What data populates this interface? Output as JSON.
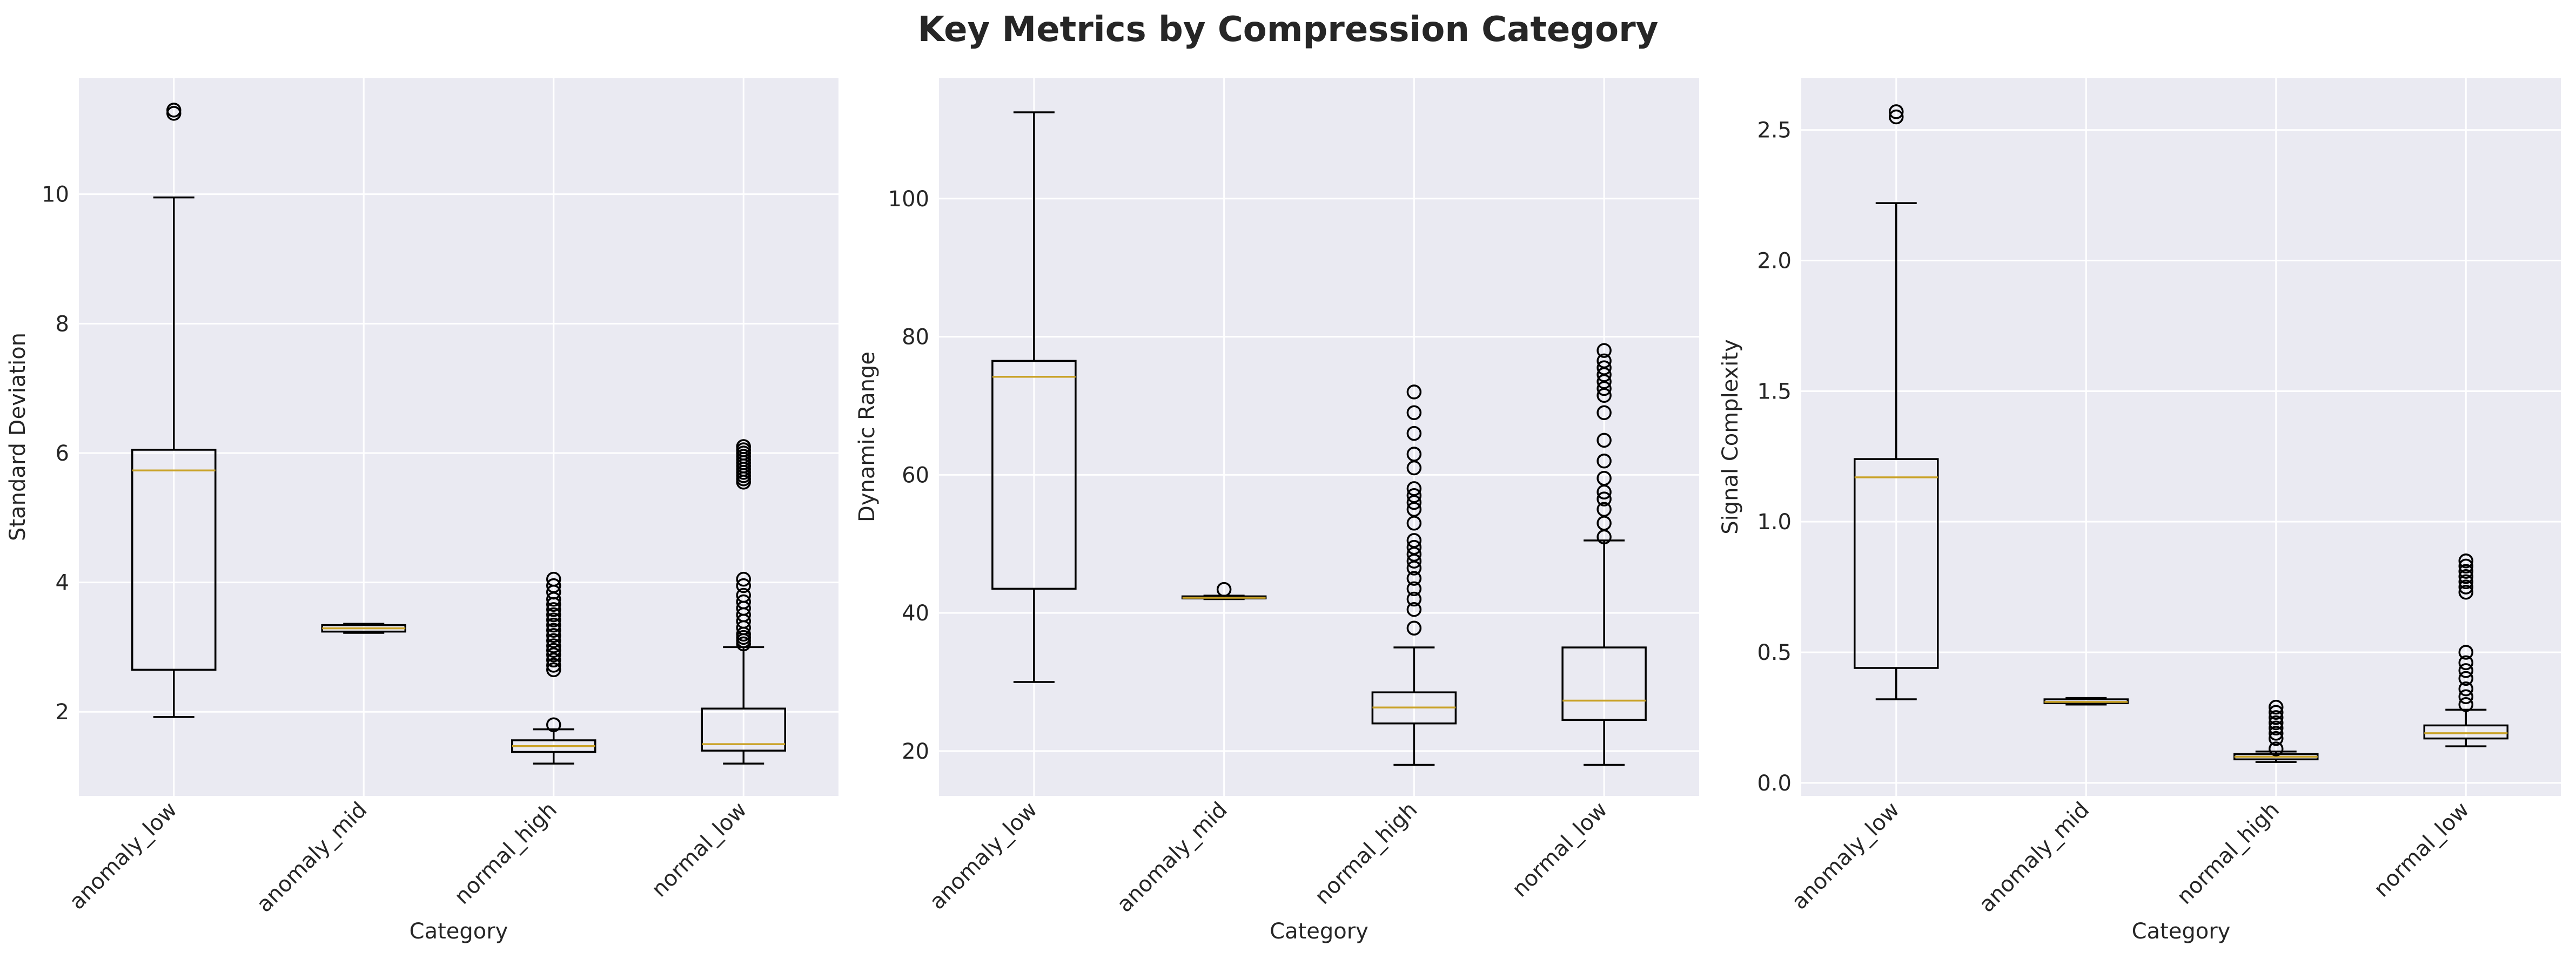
{
  "figure": {
    "title": "Key Metrics by Compression Category"
  },
  "style": {
    "axes_bg": "#eaeaf2",
    "grid_color": "#ffffff",
    "box_color": "#000000",
    "median_color": "#c9a227",
    "text_color": "#262626"
  },
  "chart_data": [
    {
      "type": "box",
      "title": "",
      "xlabel": "Category",
      "ylabel": "Standard Deviation",
      "categories": [
        "anomaly_low",
        "anomaly_mid",
        "normal_high",
        "normal_low"
      ],
      "ylim": [
        0.7,
        11.8
      ],
      "yticks": [
        2,
        4,
        6,
        8,
        10
      ],
      "grid": true,
      "boxes": [
        {
          "category": "anomaly_low",
          "whisker_low": 1.92,
          "q1": 2.65,
          "median": 5.73,
          "q3": 6.05,
          "whisker_high": 9.95,
          "outliers": [
            11.25,
            11.3
          ]
        },
        {
          "category": "anomaly_mid",
          "whisker_low": 3.22,
          "q1": 3.24,
          "median": 3.29,
          "q3": 3.34,
          "whisker_high": 3.36,
          "outliers": []
        },
        {
          "category": "normal_high",
          "whisker_low": 1.2,
          "q1": 1.38,
          "median": 1.47,
          "q3": 1.56,
          "whisker_high": 1.73,
          "outliers": [
            1.8,
            2.65,
            2.72,
            2.8,
            2.88,
            2.95,
            3.02,
            3.1,
            3.18,
            3.26,
            3.34,
            3.42,
            3.5,
            3.58,
            3.66,
            3.74,
            3.85,
            3.95,
            4.05
          ]
        },
        {
          "category": "normal_low",
          "whisker_low": 1.2,
          "q1": 1.4,
          "median": 1.5,
          "q3": 2.05,
          "whisker_high": 3.0,
          "outliers": [
            3.05,
            3.1,
            3.15,
            3.2,
            3.3,
            3.4,
            3.5,
            3.6,
            3.7,
            3.8,
            3.95,
            4.05,
            5.55,
            5.6,
            5.65,
            5.7,
            5.75,
            5.8,
            5.85,
            5.9,
            5.95,
            6.0,
            6.05,
            6.1
          ]
        }
      ]
    },
    {
      "type": "box",
      "title": "",
      "xlabel": "Category",
      "ylabel": "Dynamic Range",
      "categories": [
        "anomaly_low",
        "anomaly_mid",
        "normal_high",
        "normal_low"
      ],
      "ylim": [
        13.5,
        117.5
      ],
      "yticks": [
        20,
        40,
        60,
        80,
        100
      ],
      "grid": true,
      "boxes": [
        {
          "category": "anomaly_low",
          "whisker_low": 30.0,
          "q1": 43.5,
          "median": 74.2,
          "q3": 76.5,
          "whisker_high": 112.5,
          "outliers": []
        },
        {
          "category": "anomaly_mid",
          "whisker_low": 42.0,
          "q1": 42.1,
          "median": 42.2,
          "q3": 42.4,
          "whisker_high": 42.5,
          "outliers": [
            43.4
          ]
        },
        {
          "category": "normal_high",
          "whisker_low": 18.0,
          "q1": 24.0,
          "median": 26.3,
          "q3": 28.5,
          "whisker_high": 35.0,
          "outliers": [
            37.8,
            40.5,
            42.0,
            43.5,
            45.0,
            46.5,
            47.5,
            48.5,
            49.5,
            50.5,
            53.0,
            55.0,
            56.0,
            57.0,
            58.0,
            61.0,
            63.0,
            66.0,
            69.0,
            72.0
          ]
        },
        {
          "category": "normal_low",
          "whisker_low": 18.0,
          "q1": 24.5,
          "median": 27.3,
          "q3": 35.0,
          "whisker_high": 50.5,
          "outliers": [
            51.0,
            53.0,
            55.0,
            56.5,
            57.5,
            59.5,
            62.0,
            65.0,
            69.0,
            71.5,
            72.5,
            73.5,
            74.5,
            75.5,
            76.5,
            78.0
          ]
        }
      ]
    },
    {
      "type": "box",
      "title": "",
      "xlabel": "Category",
      "ylabel": "Signal Complexity",
      "categories": [
        "anomaly_low",
        "anomaly_mid",
        "normal_high",
        "normal_low"
      ],
      "ylim": [
        -0.05,
        2.7
      ],
      "yticks": [
        0.0,
        0.5,
        1.0,
        1.5,
        2.0,
        2.5
      ],
      "ytick_labels": [
        "0.0",
        "0.5",
        "1.0",
        "1.5",
        "2.0",
        "2.5"
      ],
      "grid": true,
      "boxes": [
        {
          "category": "anomaly_low",
          "whisker_low": 0.32,
          "q1": 0.44,
          "median": 1.17,
          "q3": 1.24,
          "whisker_high": 2.22,
          "outliers": [
            2.55,
            2.57
          ]
        },
        {
          "category": "anomaly_mid",
          "whisker_low": 0.3,
          "q1": 0.305,
          "median": 0.31,
          "q3": 0.32,
          "whisker_high": 0.325,
          "outliers": []
        },
        {
          "category": "normal_high",
          "whisker_low": 0.08,
          "q1": 0.09,
          "median": 0.1,
          "q3": 0.11,
          "whisker_high": 0.12,
          "outliers": [
            0.13,
            0.17,
            0.19,
            0.21,
            0.23,
            0.25,
            0.27,
            0.29
          ]
        },
        {
          "category": "normal_low",
          "whisker_low": 0.14,
          "q1": 0.17,
          "median": 0.19,
          "q3": 0.22,
          "whisker_high": 0.28,
          "outliers": [
            0.3,
            0.33,
            0.36,
            0.4,
            0.43,
            0.46,
            0.5,
            0.73,
            0.75,
            0.77,
            0.79,
            0.81,
            0.83,
            0.85
          ]
        }
      ]
    }
  ]
}
